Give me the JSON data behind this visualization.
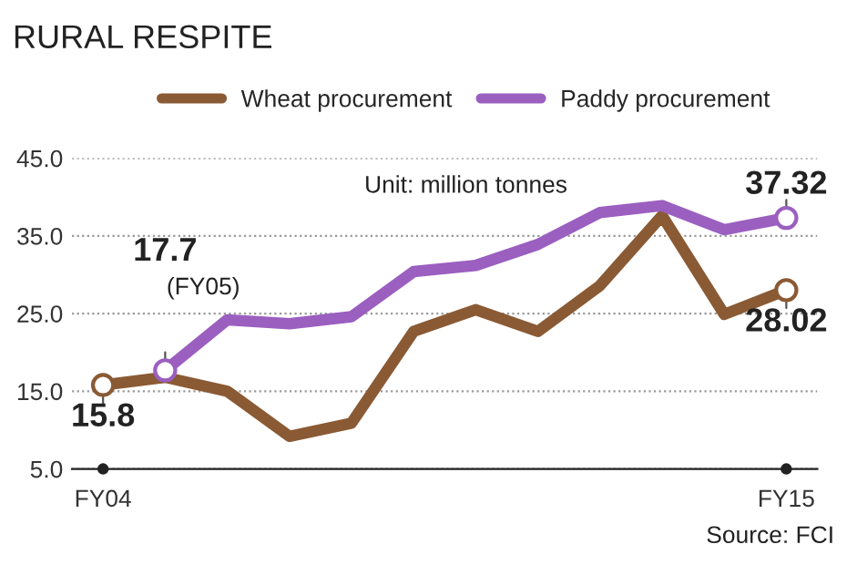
{
  "chart_data": {
    "type": "line",
    "title": "RURAL RESPITE",
    "categories": [
      "FY04",
      null,
      null,
      null,
      null,
      null,
      null,
      null,
      null,
      null,
      null,
      "FY15"
    ],
    "series": [
      {
        "name": "Wheat procurement",
        "color": "#8a5a34",
        "values": [
          15.8,
          16.8,
          15.0,
          9.2,
          10.9,
          22.7,
          25.5,
          22.7,
          28.6,
          37.6,
          24.9,
          28.02
        ],
        "value_labels": [
          "15.8",
          null,
          null,
          null,
          null,
          null,
          null,
          null,
          null,
          null,
          null,
          "28.02"
        ]
      },
      {
        "name": "Paddy procurement",
        "color": "#9b5fc0",
        "values": [
          null,
          17.7,
          24.2,
          23.7,
          24.6,
          30.4,
          31.2,
          33.9,
          38.0,
          38.9,
          35.8,
          37.32
        ],
        "value_labels": [
          null,
          "17.7",
          null,
          null,
          null,
          null,
          null,
          null,
          null,
          null,
          null,
          "37.32"
        ]
      }
    ],
    "ylim": [
      5,
      45
    ],
    "yticks": [
      {
        "value": 5,
        "label": "5.0"
      },
      {
        "value": 15,
        "label": "15.0"
      },
      {
        "value": 25,
        "label": "25.0"
      },
      {
        "value": 35,
        "label": "35.0"
      },
      {
        "value": 45,
        "label": "45.0"
      }
    ],
    "grid": "y",
    "legend": "top",
    "annotations": [
      "Unit: million tonnes",
      "(FY05)",
      "Source: FCI"
    ]
  }
}
